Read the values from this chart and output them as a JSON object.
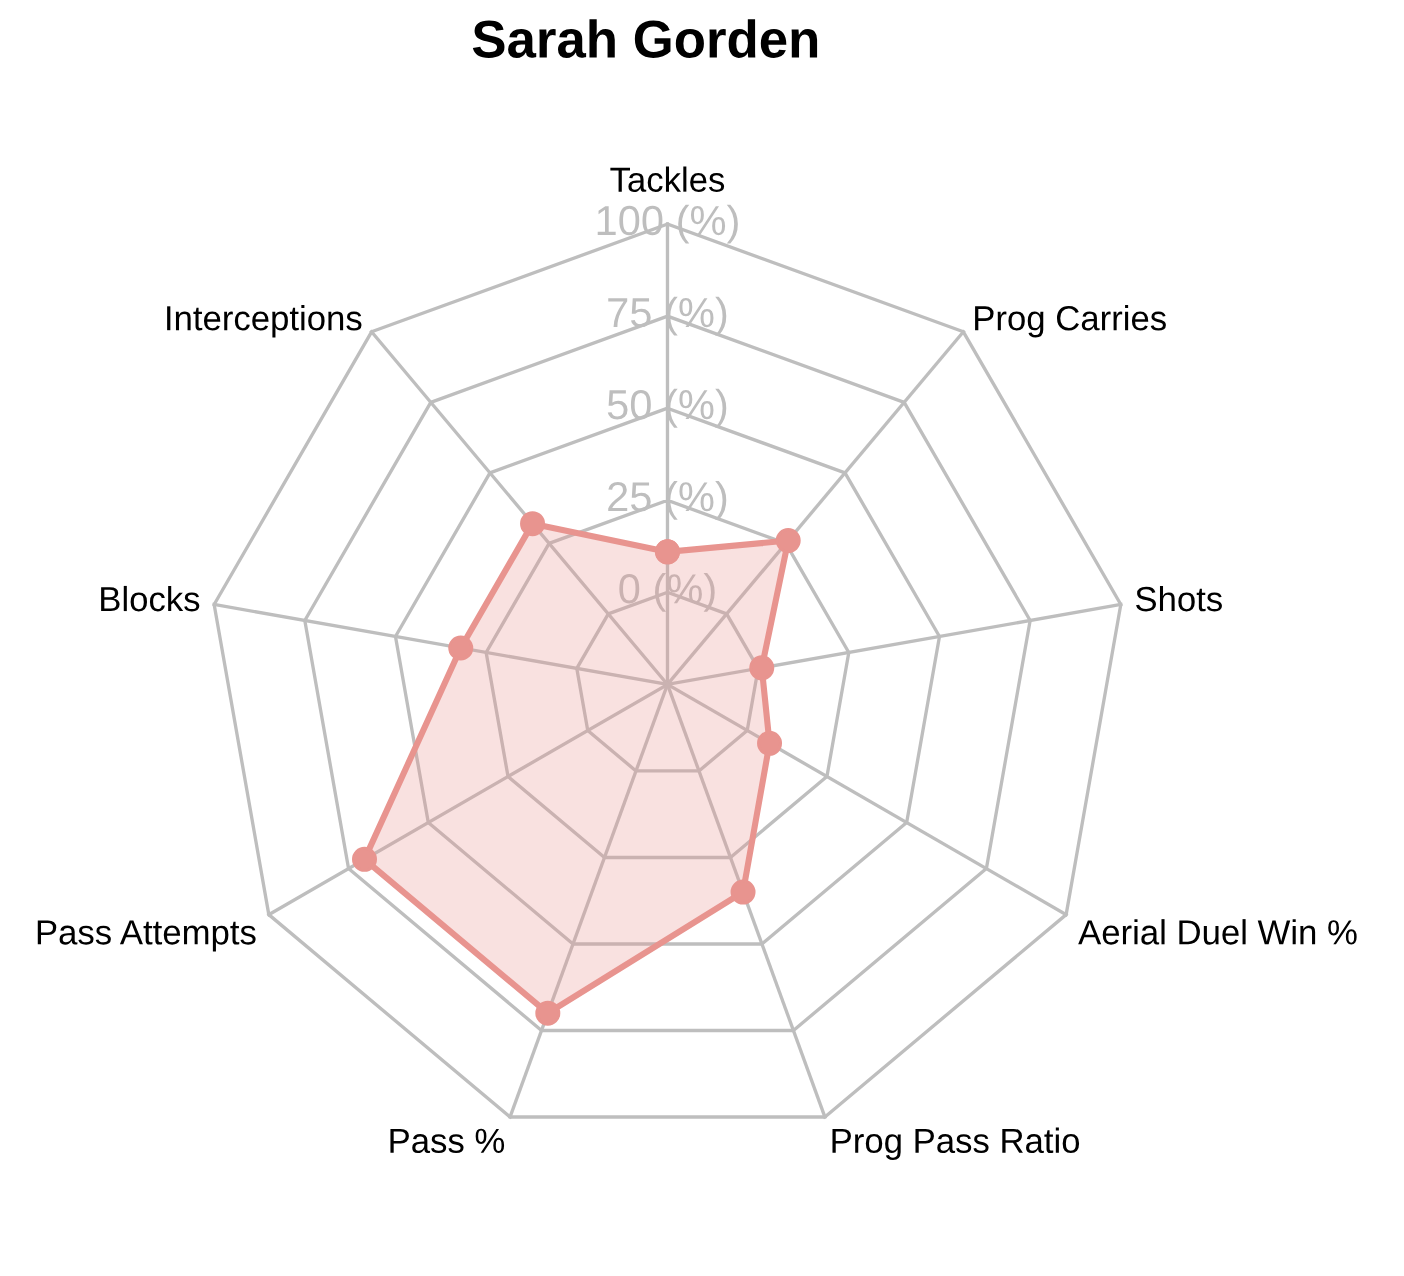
{
  "chart_data": {
    "type": "radar",
    "title": "Sarah Gorden",
    "categories": [
      "Tackles",
      "Prog Carries",
      "Shots",
      "Aerial Duel Win %",
      "Prog Pass Ratio",
      "Pass %",
      "Pass Attempts",
      "Blocks",
      "Interceptions"
    ],
    "series": [
      {
        "color": "#e8948f",
        "values": [
          11,
          26,
          1,
          7,
          35,
          70,
          70,
          32,
          32
        ]
      }
    ],
    "ylim": [
      -25,
      100
    ],
    "yticks": [
      {
        "value": 0,
        "label": "0 (%)"
      },
      {
        "value": 25,
        "label": "25 (%)"
      },
      {
        "value": 50,
        "label": "50 (%)"
      },
      {
        "value": 75,
        "label": "75 (%)"
      },
      {
        "value": 100,
        "label": "100 (%)"
      }
    ],
    "grid": true,
    "marker": "circle"
  }
}
